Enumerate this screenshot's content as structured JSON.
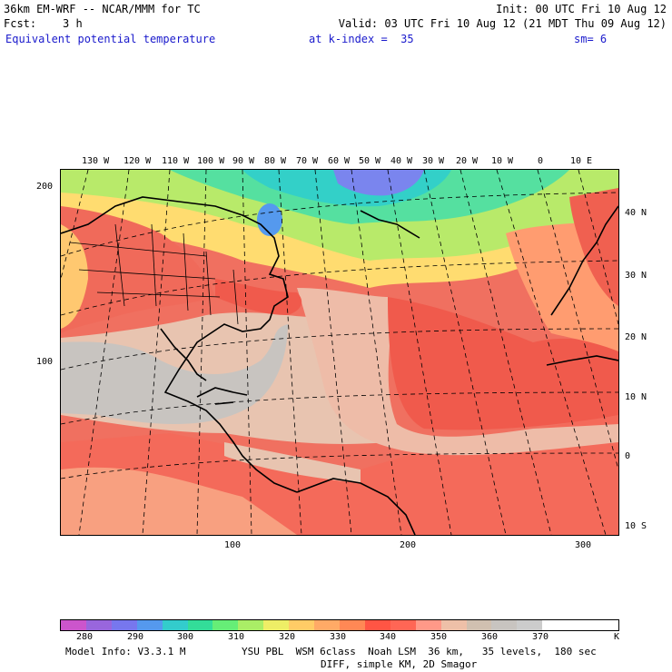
{
  "header": {
    "model": "36km EM-WRF -- NCAR/MMM for TC",
    "init": "Init: 00 UTC Fri 10 Aug 12",
    "fcst": "Fcst:    3 h",
    "valid": "Valid: 03 UTC Fri 10 Aug 12 (21 MDT Thu 09 Aug 12)",
    "field": "Equivalent potential temperature",
    "kindex": "at k-index =  35",
    "sm": "sm= 6"
  },
  "map": {
    "lon_labels": [
      "130 W",
      "120 W",
      "110 W",
      "100 W",
      "90 W",
      "80 W",
      "70 W",
      "60 W",
      "50 W",
      "40 W",
      "30 W",
      "20 W",
      "10 W",
      "0",
      "10 E"
    ],
    "lat_labels": [
      "40 N",
      "30 N",
      "20 N",
      "10 N",
      "0",
      "10 S"
    ],
    "y_ticks": [
      "200",
      "100"
    ],
    "x_ticks": [
      "100",
      "200",
      "300"
    ]
  },
  "colorbar": {
    "colors": [
      "#cc55cc",
      "#9966dd",
      "#7777ee",
      "#5599ee",
      "#33cccc",
      "#33dd99",
      "#66ee77",
      "#aaee66",
      "#eeee66",
      "#ffcc66",
      "#ffaa66",
      "#ff8855",
      "#ff5544",
      "#ff6655",
      "#ff9988",
      "#eec0a8",
      "#d0c0b0",
      "#c8c4c0",
      "#cccccc",
      "#ffffff",
      "#ffffff",
      "#ffffff"
    ],
    "labels": [
      "280",
      "290",
      "300",
      "310",
      "320",
      "330",
      "340",
      "350",
      "360",
      "370"
    ],
    "unit": "K"
  },
  "footer": {
    "model_info": "Model Info: V3.3.1 M",
    "physics": "YSU PBL  WSM 6class  Noah LSM  36 km,   35 levels,  180 sec",
    "diff": "DIFF, simple KM, 2D Smagor"
  }
}
